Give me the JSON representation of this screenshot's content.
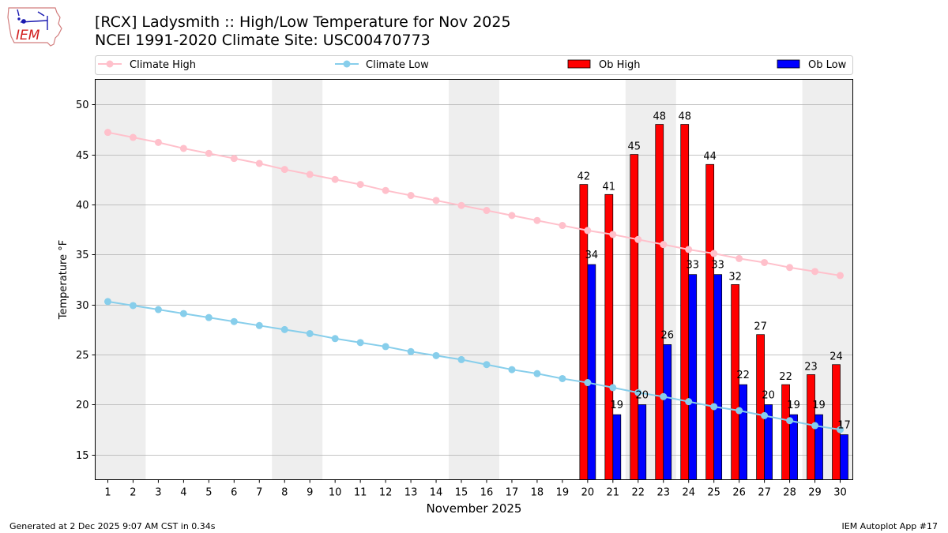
{
  "header": {
    "title_line1": "[RCX] Ladysmith :: High/Low Temperature for Nov 2025",
    "title_line2": "NCEI 1991-2020 Climate Site: USC00470773"
  },
  "logo": {
    "text": "IEM"
  },
  "footer": {
    "generated": "Generated at 2 Dec 2025 9:07 AM CST in 0.34s",
    "app": "IEM Autoplot App #17"
  },
  "colors": {
    "climate_high": "#ffc0cb",
    "climate_low": "#87ceeb",
    "ob_high": "#ff0000",
    "ob_low": "#0000ff",
    "weekend_shade": "#eeeeee",
    "grid": "#b0b0b0"
  },
  "chart_data": {
    "type": "bar",
    "xlabel": "November 2025",
    "ylabel": "Temperature °F",
    "ylim": [
      12.5,
      52.5
    ],
    "yticks": [
      15,
      20,
      25,
      30,
      35,
      40,
      45,
      50
    ],
    "days": [
      1,
      2,
      3,
      4,
      5,
      6,
      7,
      8,
      9,
      10,
      11,
      12,
      13,
      14,
      15,
      16,
      17,
      18,
      19,
      20,
      21,
      22,
      23,
      24,
      25,
      26,
      27,
      28,
      29,
      30
    ],
    "shaded_days": [
      [
        1,
        2
      ],
      [
        8,
        9
      ],
      [
        15,
        16
      ],
      [
        22,
        23
      ],
      [
        29,
        30
      ]
    ],
    "legend": {
      "climate_high": "Climate High",
      "climate_low": "Climate Low",
      "ob_high": "Ob High",
      "ob_low": "Ob Low"
    },
    "climate_high": [
      47.2,
      46.7,
      46.2,
      45.6,
      45.1,
      44.6,
      44.1,
      43.5,
      43.0,
      42.5,
      42.0,
      41.4,
      40.9,
      40.4,
      39.9,
      39.4,
      38.9,
      38.4,
      37.9,
      37.4,
      37.0,
      36.5,
      36.0,
      35.5,
      35.1,
      34.6,
      34.2,
      33.7,
      33.3,
      32.9
    ],
    "climate_low": [
      30.3,
      29.9,
      29.5,
      29.1,
      28.7,
      28.3,
      27.9,
      27.5,
      27.1,
      26.6,
      26.2,
      25.8,
      25.3,
      24.9,
      24.5,
      24.0,
      23.5,
      23.1,
      22.6,
      22.2,
      21.7,
      21.2,
      20.8,
      20.3,
      19.8,
      19.4,
      18.9,
      18.4,
      17.9,
      17.5
    ],
    "ob_high": [
      {
        "day": 20,
        "value": 42
      },
      {
        "day": 21,
        "value": 41
      },
      {
        "day": 22,
        "value": 45
      },
      {
        "day": 23,
        "value": 48
      },
      {
        "day": 24,
        "value": 48
      },
      {
        "day": 25,
        "value": 44
      },
      {
        "day": 26,
        "value": 32
      },
      {
        "day": 27,
        "value": 27
      },
      {
        "day": 28,
        "value": 22
      },
      {
        "day": 29,
        "value": 23
      },
      {
        "day": 30,
        "value": 24
      }
    ],
    "ob_low": [
      {
        "day": 20,
        "value": 34
      },
      {
        "day": 21,
        "value": 19
      },
      {
        "day": 22,
        "value": 20
      },
      {
        "day": 23,
        "value": 26
      },
      {
        "day": 24,
        "value": 33
      },
      {
        "day": 25,
        "value": 33
      },
      {
        "day": 26,
        "value": 22
      },
      {
        "day": 27,
        "value": 20
      },
      {
        "day": 28,
        "value": 19
      },
      {
        "day": 29,
        "value": 19
      },
      {
        "day": 30,
        "value": 17
      }
    ]
  }
}
